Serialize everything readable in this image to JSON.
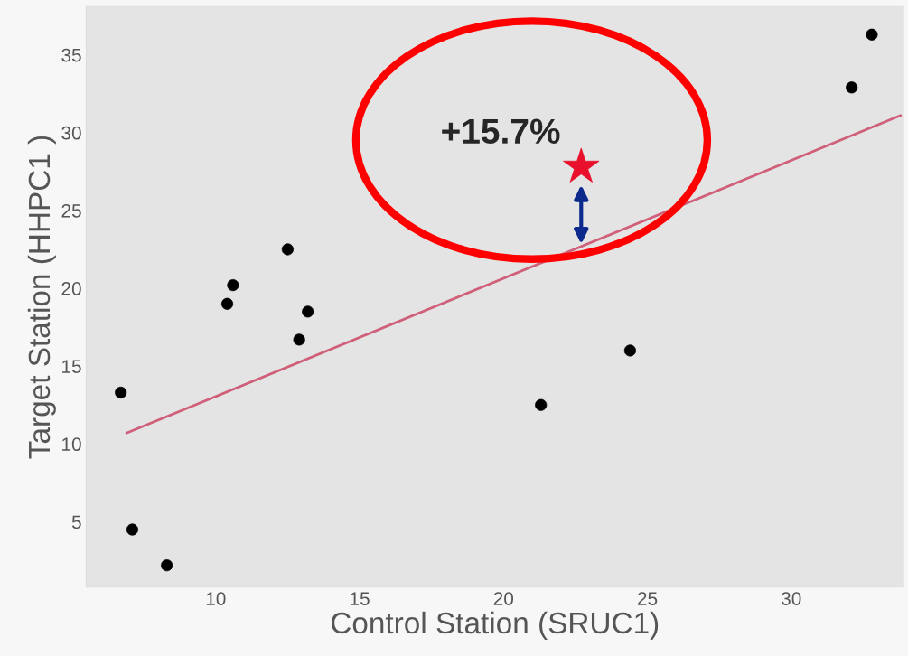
{
  "chart_data": {
    "type": "scatter",
    "xlabel": "Control Station (SRUC1)",
    "ylabel": "Target Station (HHPC1 )",
    "xlim": [
      5.5,
      33.9
    ],
    "ylim": [
      0.8,
      38.1
    ],
    "xticks": [
      10,
      15,
      20,
      25,
      30
    ],
    "yticks": [
      5,
      10,
      15,
      20,
      25,
      30,
      35
    ],
    "grid": false,
    "legend": false,
    "marker": "circle",
    "series": [
      {
        "color": "#000000",
        "x": [
          6.7,
          7.1,
          8.3,
          10.4,
          10.6,
          12.5,
          13.2,
          12.9,
          21.3,
          24.4,
          32.1,
          32.8
        ],
        "values": [
          13.3,
          4.5,
          2.2,
          19.0,
          20.2,
          22.5,
          18.5,
          16.7,
          12.5,
          16.0,
          32.9,
          36.3
        ]
      },
      {
        "type": "line",
        "color": "#d0607a",
        "marker": "none",
        "line_style": "solid",
        "x": [
          6.9,
          33.8
        ],
        "values": [
          10.7,
          31.1
        ]
      },
      {
        "color": "#e8102a",
        "marker": "star",
        "x": [
          22.7
        ],
        "values": [
          27.8
        ]
      }
    ],
    "annotations": [
      "+15.7%"
    ]
  }
}
